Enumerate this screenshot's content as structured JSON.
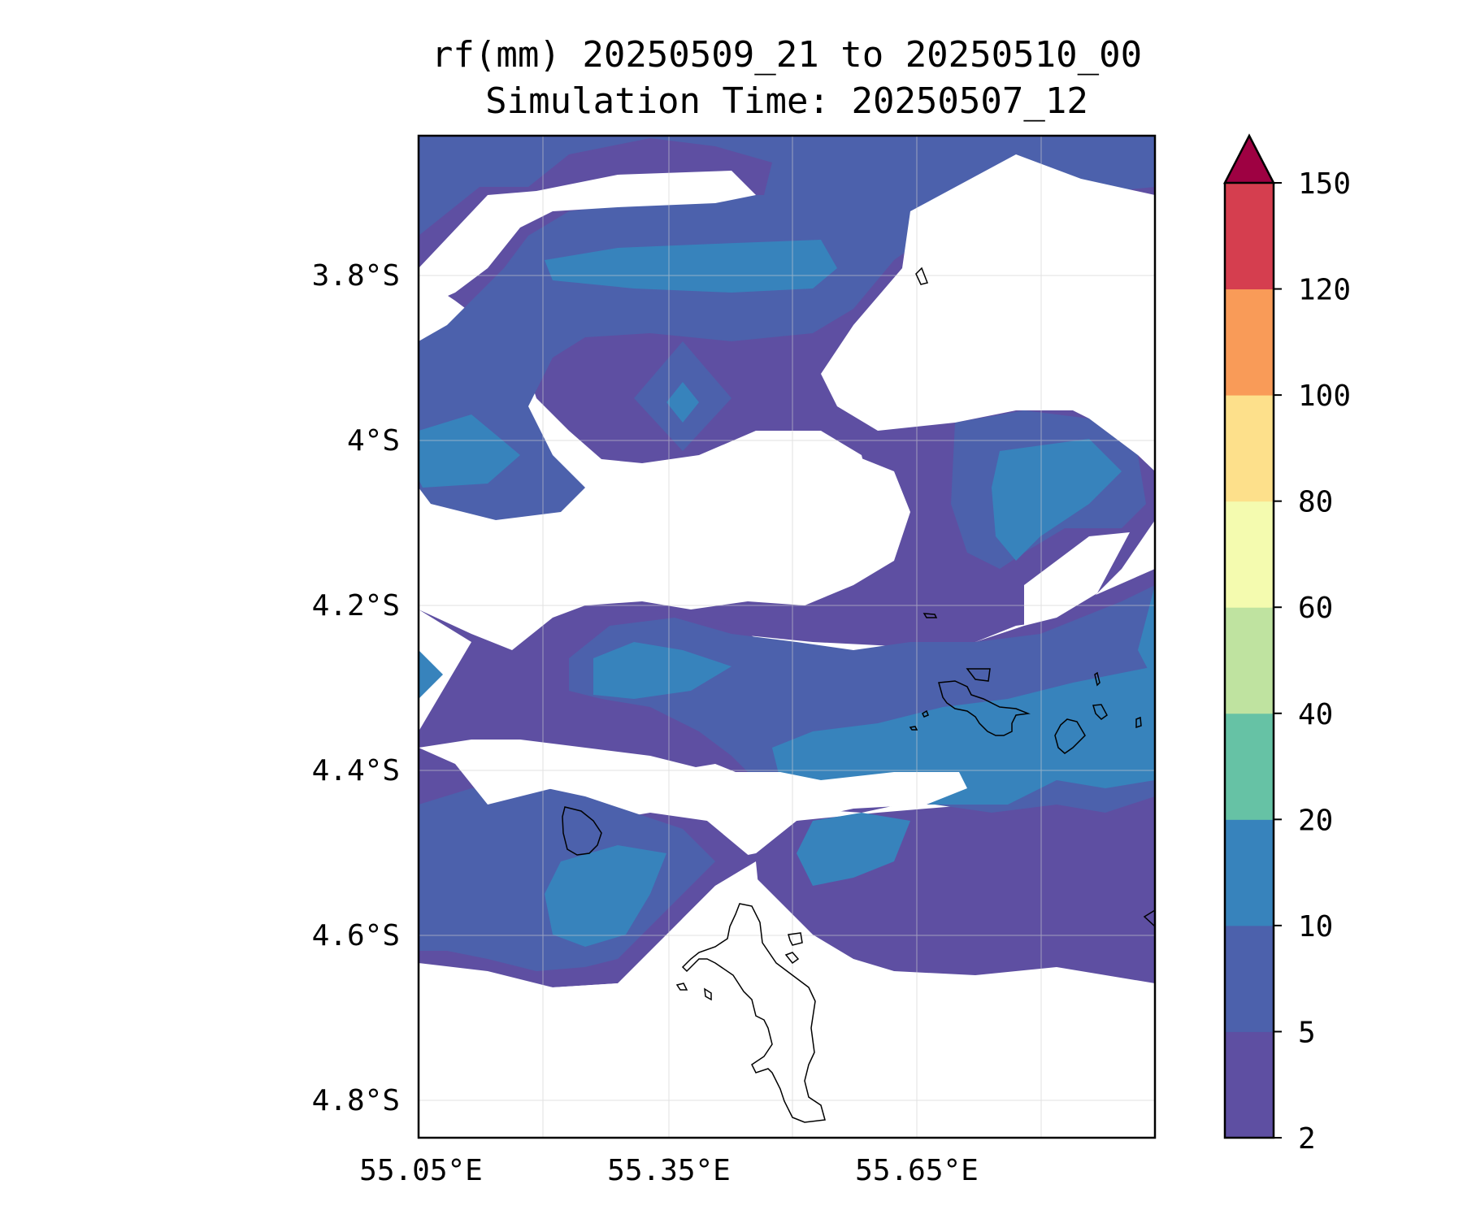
{
  "title": {
    "line1": "rf(mm) 20250509_21 to 20250510_00",
    "line2": "Simulation Time: 20250507_12"
  },
  "axes": {
    "y_ticks": [
      "3.8°S",
      "4°S",
      "4.2°S",
      "4.4°S",
      "4.6°S",
      "4.8°S"
    ],
    "x_ticks": [
      "55.05°E",
      "55.35°E",
      "55.65°E"
    ],
    "grid": true
  },
  "colorbar": {
    "labels": [
      "2",
      "5",
      "10",
      "20",
      "40",
      "60",
      "80",
      "100",
      "120",
      "150"
    ],
    "bins": [
      {
        "range": "2-5",
        "color": "#5e4fa2"
      },
      {
        "range": "5-10",
        "color": "#4c61ac"
      },
      {
        "range": "10-20",
        "color": "#3783bc"
      },
      {
        "range": "20-40",
        "color": "#66c2a5"
      },
      {
        "range": "40-60",
        "color": "#bfe3a0"
      },
      {
        "range": "60-80",
        "color": "#f4fbaf"
      },
      {
        "range": "80-100",
        "color": "#fde08b"
      },
      {
        "range": "100-120",
        "color": "#f99b58"
      },
      {
        "range": "120-150",
        "color": "#d53e4f"
      }
    ],
    "extend_color": "#9e0142"
  },
  "colors": {
    "level_2": "#5e4fa2",
    "level_5": "#4c61ac",
    "level_10": "#3783bc",
    "coastline": "#000000"
  }
}
